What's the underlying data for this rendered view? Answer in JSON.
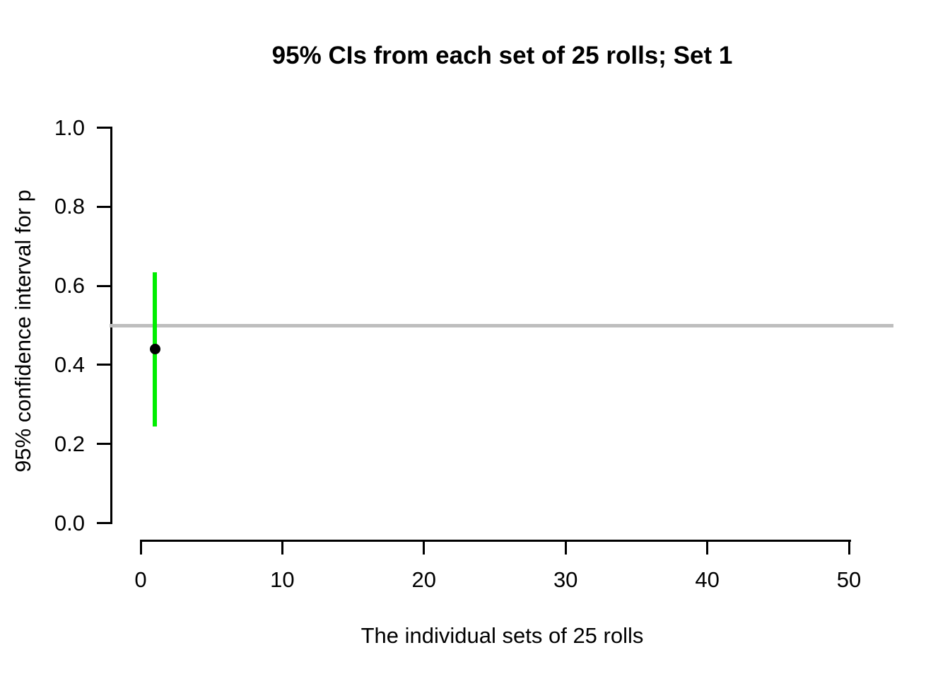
{
  "figure": {
    "title": "95% CIs from each set of 25 rolls; Set 1",
    "x_axis_title": "The individual sets of 25 rolls",
    "y_axis_title": "95% confidence interval for p"
  },
  "chart_data": {
    "type": "scatter",
    "title": "95% CIs from each set of 25 rolls; Set 1",
    "xlabel": "The individual sets of 25 rolls",
    "ylabel": "95% confidence interval for p",
    "xlim": [
      0,
      50
    ],
    "ylim": [
      0.0,
      1.0
    ],
    "x_ticks": [
      0,
      10,
      20,
      30,
      40,
      50
    ],
    "x_tick_labels": [
      "0",
      "10",
      "20",
      "30",
      "40",
      "50"
    ],
    "y_ticks": [
      0.0,
      0.2,
      0.4,
      0.6,
      0.8,
      1.0
    ],
    "y_tick_labels": [
      "0.0",
      "0.2",
      "0.4",
      "0.6",
      "0.8",
      "1.0"
    ],
    "grid": false,
    "legend": false,
    "reference_line": {
      "y": 0.5,
      "color": "#bebebe"
    },
    "series": [
      {
        "name": "ci-set-1",
        "set": 1,
        "x": 1,
        "estimate": 0.44,
        "ci_lower": 0.245,
        "ci_upper": 0.635,
        "ci_color": "#00ee00",
        "point_color": "#000000",
        "covers_reference": true
      }
    ]
  },
  "colors": {
    "background": "#ffffff",
    "axis": "#000000",
    "reference_line": "#bebebe",
    "ci_line": "#00ee00",
    "point": "#000000"
  }
}
